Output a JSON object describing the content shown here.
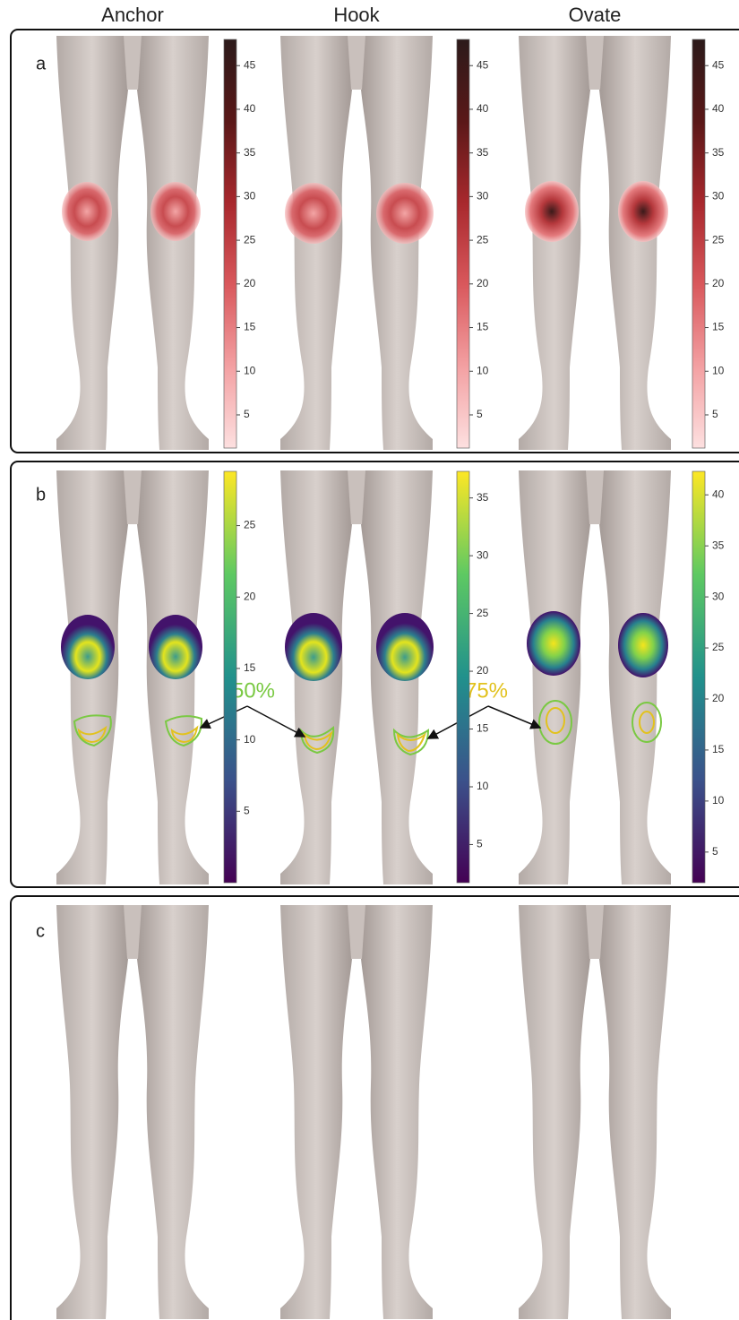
{
  "column_titles": [
    "Anchor",
    "Hook",
    "Ovate"
  ],
  "panels": [
    {
      "label": "a",
      "colormap": "reds",
      "colorbars": [
        {
          "lim": [
            1.2,
            48
          ],
          "ticks": [
            5,
            10,
            15,
            20,
            25,
            30,
            35,
            40,
            45
          ]
        },
        {
          "lim": [
            1.2,
            48
          ],
          "ticks": [
            5,
            10,
            15,
            20,
            25,
            30,
            35,
            40,
            45
          ]
        },
        {
          "lim": [
            1.2,
            48
          ],
          "ticks": [
            5,
            10,
            15,
            20,
            25,
            30,
            35,
            40,
            45
          ]
        }
      ]
    },
    {
      "label": "b",
      "colormap": "viridis",
      "colorbars": [
        {
          "lim": [
            0,
            28.8
          ],
          "ticks": [
            5,
            10,
            15,
            20,
            25
          ]
        },
        {
          "lim": [
            1.7,
            37.3
          ],
          "ticks": [
            5,
            10,
            15,
            20,
            25,
            30,
            35
          ]
        },
        {
          "lim": [
            2,
            42.3
          ],
          "ticks": [
            5,
            10,
            15,
            20,
            25,
            30,
            35,
            40
          ]
        }
      ]
    },
    {
      "label": "c",
      "annotations": [
        "50%",
        "75%"
      ]
    }
  ]
}
